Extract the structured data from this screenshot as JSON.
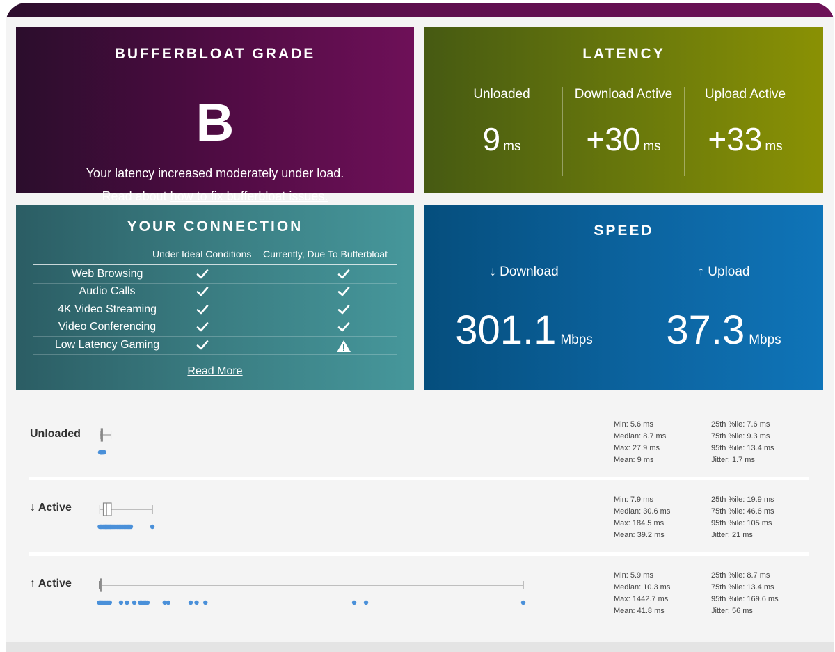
{
  "grade": {
    "title": "BUFFERBLOAT GRADE",
    "letter": "B",
    "description": "Your latency increased moderately under load.",
    "fix_prefix": "Read about ",
    "fix_link": "how to fix bufferbloat issues."
  },
  "latency": {
    "title": "LATENCY",
    "unloaded": {
      "label": "Unloaded",
      "value": "9",
      "unit": "ms"
    },
    "download": {
      "label": "Download Active",
      "value": "+30",
      "unit": "ms"
    },
    "upload": {
      "label": "Upload Active",
      "value": "+33",
      "unit": "ms"
    }
  },
  "connection": {
    "title": "YOUR CONNECTION",
    "col_ideal": "Under Ideal Conditions",
    "col_current": "Currently, Due To Bufferbloat",
    "rows": [
      {
        "name": "Web Browsing",
        "ideal": "ok",
        "current": "ok"
      },
      {
        "name": "Audio Calls",
        "ideal": "ok",
        "current": "ok"
      },
      {
        "name": "4K Video Streaming",
        "ideal": "ok",
        "current": "ok"
      },
      {
        "name": "Video Conferencing",
        "ideal": "ok",
        "current": "ok"
      },
      {
        "name": "Low Latency Gaming",
        "ideal": "ok",
        "current": "warning"
      }
    ],
    "read_more": "Read More"
  },
  "speed": {
    "title": "SPEED",
    "download": {
      "label": "↓ Download",
      "value": "301.1",
      "unit": "Mbps"
    },
    "upload": {
      "label": "↑ Upload",
      "value": "37.3",
      "unit": "Mbps"
    }
  },
  "distributions": {
    "unloaded": {
      "label": "Unloaded",
      "stats": {
        "min": "Min: 5.6 ms",
        "median": "Median: 8.7 ms",
        "max": "Max: 27.9 ms",
        "mean": "Mean: 9 ms",
        "p25": "25th %ile: 7.6 ms",
        "p75": "75th %ile: 9.3 ms",
        "p95": "95th %ile: 13.4 ms",
        "jitter": "Jitter: 1.7 ms"
      },
      "box": {
        "min": 5.6,
        "q1": 7.6,
        "median": 8.7,
        "q3": 9.3,
        "max": 27.9
      },
      "points": [
        5.6,
        6.2,
        6.8,
        7.2,
        7.6,
        8.0,
        8.4,
        8.7,
        9.0,
        9.3,
        9.8,
        10.4,
        11.2,
        12.4,
        13.4,
        14.0
      ]
    },
    "download_active": {
      "label": "↓ Active",
      "stats": {
        "min": "Min: 7.9 ms",
        "median": "Median: 30.6 ms",
        "max": "Max: 184.5 ms",
        "mean": "Mean: 39.2 ms",
        "p25": "25th %ile: 19.9 ms",
        "p75": "75th %ile: 46.6 ms",
        "p95": "95th %ile: 105 ms",
        "jitter": "Jitter: 21 ms"
      },
      "box": {
        "min": 7.9,
        "q1": 19.9,
        "median": 30.6,
        "q3": 46.6,
        "max": 184.5
      },
      "points": [
        7.9,
        10,
        13,
        16,
        19.9,
        23,
        26,
        28,
        30.6,
        33,
        36,
        39,
        42,
        44,
        46.6,
        50,
        54,
        58,
        62,
        66,
        70,
        74,
        78,
        82,
        86,
        90,
        94,
        98,
        102,
        105,
        108,
        112,
        184.5
      ]
    },
    "upload_active": {
      "label": "↑ Active",
      "stats": {
        "min": "Min: 5.9 ms",
        "median": "Median: 10.3 ms",
        "max": "Max: 1442.7 ms",
        "mean": "Mean: 41.8 ms",
        "p25": "25th %ile: 8.7 ms",
        "p75": "75th %ile: 13.4 ms",
        "p95": "95th %ile: 169.6 ms",
        "jitter": "Jitter: 56 ms"
      },
      "box": {
        "min": 5.9,
        "q1": 8.7,
        "median": 10.3,
        "q3": 13.4,
        "max": 1442.7
      },
      "points": [
        5.9,
        8.7,
        10.3,
        13.4,
        18,
        22,
        26,
        30,
        34,
        38,
        42,
        80,
        100,
        125,
        145,
        150,
        158,
        164,
        169.6,
        228,
        240,
        316,
        336,
        366,
        870,
        910,
        1442.7
      ]
    },
    "axis": {
      "min_ms": 0,
      "max_ms": 1442.7
    }
  },
  "colors": {
    "point": "#4a90d9",
    "box": "#888888",
    "warning_icon": "warning-triangle-icon",
    "check_icon": "check-icon"
  }
}
